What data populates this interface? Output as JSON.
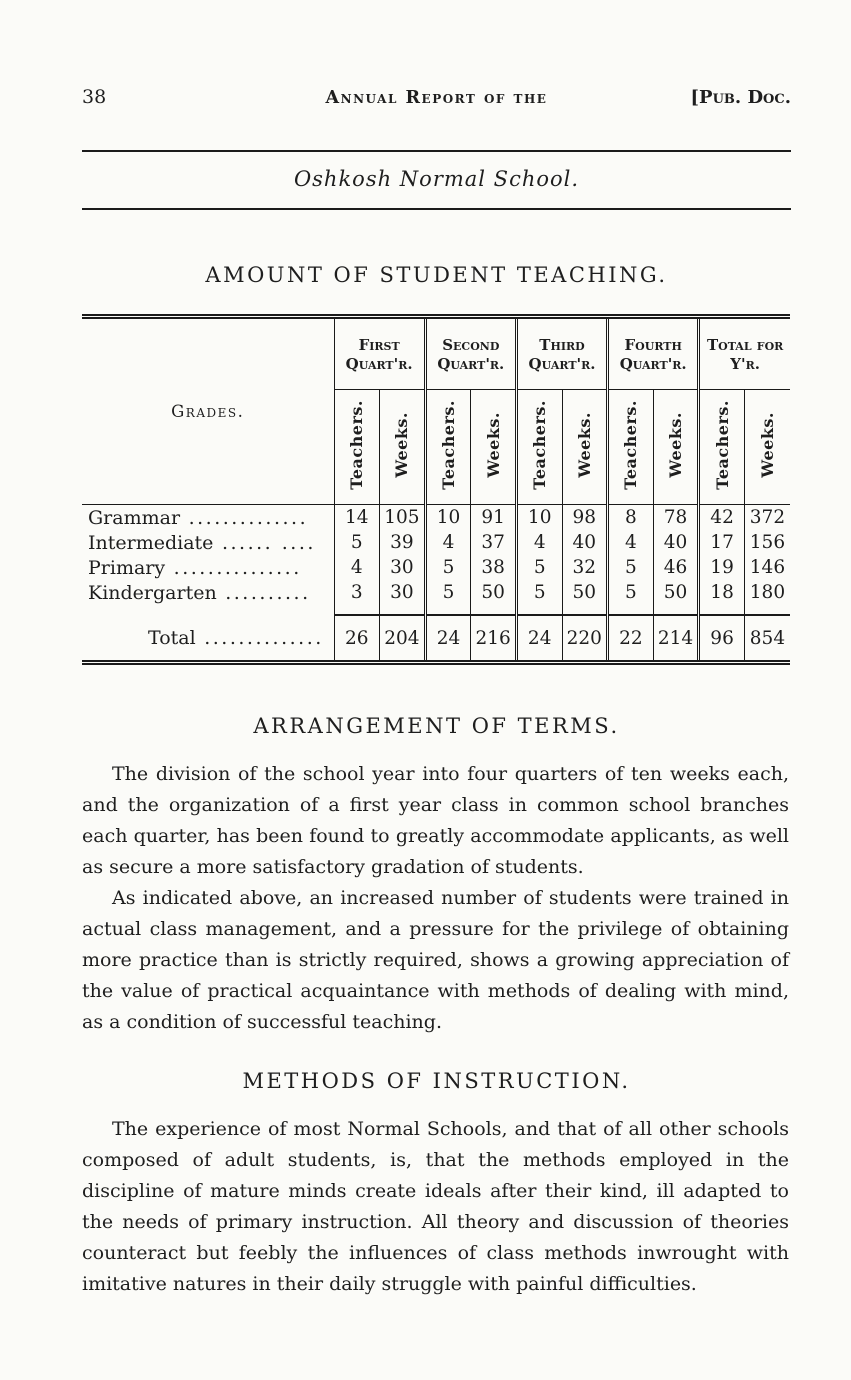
{
  "header": {
    "page_number": "38",
    "running_title": "Annual Report of the",
    "doc_tag": "[Pub. Doc.",
    "school_title": "Oshkosh Normal School."
  },
  "teaching": {
    "title": "AMOUNT OF STUDENT TEACHING.",
    "table": {
      "row_header": "Grades.",
      "quarters": [
        "First Quart'r.",
        "Second Quart'r.",
        "Third Quart'r.",
        "Fourth Quart'r.",
        "Total for Y'r."
      ],
      "sub_headers": [
        "Teachers.",
        "Weeks."
      ],
      "rows": [
        {
          "label": "Grammar",
          "leader": " ..............",
          "values": [
            "14",
            "105",
            "10",
            "91",
            "10",
            "98",
            "8",
            "78",
            "42",
            "372"
          ]
        },
        {
          "label": "Intermediate",
          "leader": " ...... ....",
          "values": [
            "5",
            "39",
            "4",
            "37",
            "4",
            "40",
            "4",
            "40",
            "17",
            "156"
          ]
        },
        {
          "label": "Primary",
          "leader": " ...............",
          "values": [
            "4",
            "30",
            "5",
            "38",
            "5",
            "32",
            "5",
            "46",
            "19",
            "146"
          ]
        },
        {
          "label": "Kindergarten",
          "leader": " ..........",
          "values": [
            "3",
            "30",
            "5",
            "50",
            "5",
            "50",
            "5",
            "50",
            "18",
            "180"
          ]
        }
      ],
      "total": {
        "label": "Total",
        "leader": " ..............",
        "values": [
          "26",
          "204",
          "24",
          "216",
          "24",
          "220",
          "22",
          "214",
          "96",
          "854"
        ]
      }
    }
  },
  "sections": [
    {
      "heading": "ARRANGEMENT OF TERMS.",
      "paragraphs": [
        "The division of the school year into four quarters of ten weeks each, and the organization of a first year class in common school branches each quarter, has been found to greatly accommodate applicants, as well as secure a more satisfactory gradation of students.",
        "As indicated above, an increased number of students were trained in actual class management, and a pressure for the privilege of obtaining more practice than is strictly required, shows a growing appreciation of the value of practical acquaintance with methods of dealing with mind, as a condition of successful teaching."
      ]
    },
    {
      "heading": "METHODS OF INSTRUCTION.",
      "paragraphs": [
        "The experience of most Normal Schools, and that of all other schools composed of adult students, is, that the methods employed in the discipline of mature minds create ideals after their kind, ill adapted to the needs of primary instruction. All theory and discussion of theories counteract but feebly the influences of class methods inwrought with imitative natures in their daily struggle with painful difficulties."
      ]
    }
  ]
}
